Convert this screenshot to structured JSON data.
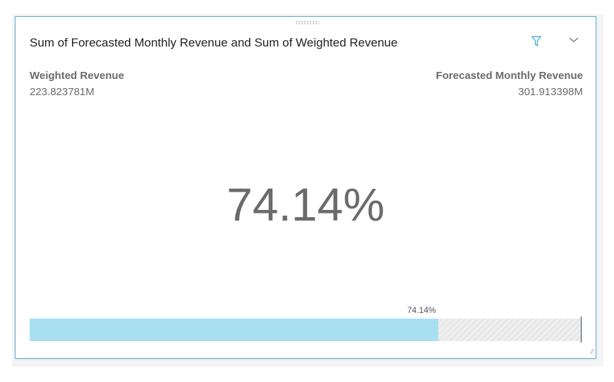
{
  "title": "Sum of Forecasted Monthly Revenue and Sum of Weighted Revenue",
  "left": {
    "label": "Weighted Revenue",
    "value": "223.823781M"
  },
  "right": {
    "label": "Forecasted Monthly Revenue",
    "value": "301.913398M"
  },
  "kpi": "74.14%",
  "progress": {
    "label": "74.14%",
    "percent": 74.14
  },
  "accent": "#4fb3d4"
}
